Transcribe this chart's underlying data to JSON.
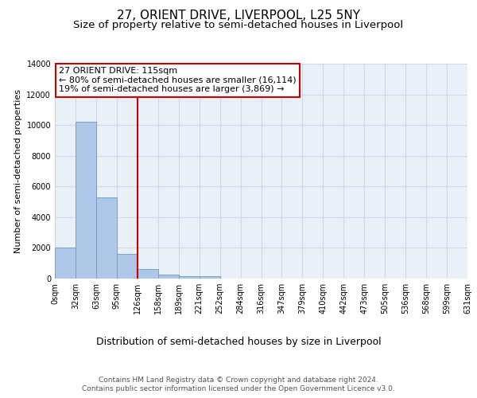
{
  "title": "27, ORIENT DRIVE, LIVERPOOL, L25 5NY",
  "subtitle": "Size of property relative to semi-detached houses in Liverpool",
  "xlabel": "Distribution of semi-detached houses by size in Liverpool",
  "ylabel": "Number of semi-detached properties",
  "bar_values": [
    2000,
    10200,
    5300,
    1600,
    600,
    280,
    160,
    130,
    0,
    0,
    0,
    0,
    0,
    0,
    0,
    0,
    0,
    0,
    0,
    0
  ],
  "categories": [
    "0sqm",
    "32sqm",
    "63sqm",
    "95sqm",
    "126sqm",
    "158sqm",
    "189sqm",
    "221sqm",
    "252sqm",
    "284sqm",
    "316sqm",
    "347sqm",
    "379sqm",
    "410sqm",
    "442sqm",
    "473sqm",
    "505sqm",
    "536sqm",
    "568sqm",
    "599sqm",
    "631sqm"
  ],
  "bar_color": "#aec6e8",
  "bar_edge_color": "#5a9fd4",
  "grid_color": "#d0d8e8",
  "background_color": "#eaf0f8",
  "vline_x": 4,
  "vline_color": "#cc0000",
  "annotation_text": "27 ORIENT DRIVE: 115sqm\n← 80% of semi-detached houses are smaller (16,114)\n19% of semi-detached houses are larger (3,869) →",
  "annotation_box_color": "#ffffff",
  "annotation_box_edge": "#cc0000",
  "ylim": [
    0,
    14000
  ],
  "yticks": [
    0,
    2000,
    4000,
    6000,
    8000,
    10000,
    12000,
    14000
  ],
  "footer_text": "Contains HM Land Registry data © Crown copyright and database right 2024.\nContains public sector information licensed under the Open Government Licence v3.0.",
  "title_fontsize": 11,
  "subtitle_fontsize": 9.5,
  "xlabel_fontsize": 9,
  "ylabel_fontsize": 8,
  "tick_fontsize": 7,
  "footer_fontsize": 6.5,
  "annot_fontsize": 8
}
